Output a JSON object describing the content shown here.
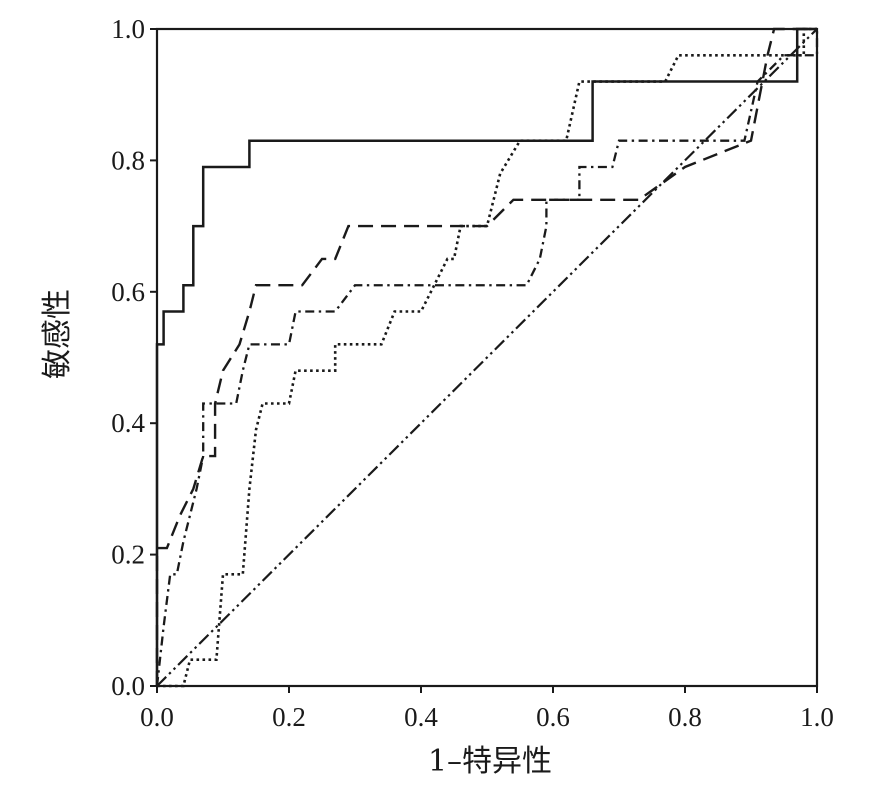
{
  "chart_data": {
    "type": "line",
    "title": "",
    "xlabel": "1–特异性",
    "ylabel": "敏感性",
    "xlim": [
      0,
      1
    ],
    "ylim": [
      0,
      1
    ],
    "xticks": [
      0,
      0.2,
      0.4,
      0.6,
      0.8,
      1.0
    ],
    "xtick_labels": [
      "0.0",
      "0.2",
      "0.4",
      "0.6",
      "0.8",
      "1.0"
    ],
    "yticks": [
      0,
      0.2,
      0.4,
      0.6,
      0.8,
      1.0
    ],
    "ytick_labels": [
      "0.0",
      "0.2",
      "0.4",
      "0.6",
      "0.8",
      "1.0"
    ],
    "grid": false,
    "legend": "none",
    "line_color": "#1a1a1a",
    "series": [
      {
        "style": "solid",
        "points": [
          [
            0,
            0
          ],
          [
            0,
            0.52
          ],
          [
            0.01,
            0.52
          ],
          [
            0.01,
            0.57
          ],
          [
            0.04,
            0.57
          ],
          [
            0.04,
            0.61
          ],
          [
            0.055,
            0.61
          ],
          [
            0.055,
            0.7
          ],
          [
            0.07,
            0.7
          ],
          [
            0.07,
            0.79
          ],
          [
            0.14,
            0.79
          ],
          [
            0.14,
            0.83
          ],
          [
            0.66,
            0.83
          ],
          [
            0.66,
            0.92
          ],
          [
            0.97,
            0.92
          ],
          [
            0.97,
            1
          ],
          [
            1,
            1
          ]
        ]
      },
      {
        "style": "dashed",
        "points": [
          [
            0,
            0
          ],
          [
            0,
            0.21
          ],
          [
            0.015,
            0.21
          ],
          [
            0.035,
            0.26
          ],
          [
            0.055,
            0.3
          ],
          [
            0.07,
            0.35
          ],
          [
            0.088,
            0.35
          ],
          [
            0.088,
            0.43
          ],
          [
            0.1,
            0.48
          ],
          [
            0.125,
            0.52
          ],
          [
            0.14,
            0.57
          ],
          [
            0.15,
            0.61
          ],
          [
            0.22,
            0.61
          ],
          [
            0.25,
            0.65
          ],
          [
            0.27,
            0.65
          ],
          [
            0.29,
            0.7
          ],
          [
            0.5,
            0.7
          ],
          [
            0.54,
            0.74
          ],
          [
            0.73,
            0.74
          ],
          [
            0.8,
            0.79
          ],
          [
            0.9,
            0.83
          ],
          [
            0.925,
            0.96
          ],
          [
            0.935,
            1
          ],
          [
            1,
            1
          ]
        ]
      },
      {
        "style": "dash-dot",
        "points": [
          [
            0,
            0
          ],
          [
            0.01,
            0.09
          ],
          [
            0.02,
            0.17
          ],
          [
            0.03,
            0.17
          ],
          [
            0.04,
            0.22
          ],
          [
            0.05,
            0.26
          ],
          [
            0.06,
            0.3
          ],
          [
            0.07,
            0.35
          ],
          [
            0.07,
            0.43
          ],
          [
            0.12,
            0.43
          ],
          [
            0.13,
            0.48
          ],
          [
            0.14,
            0.52
          ],
          [
            0.2,
            0.52
          ],
          [
            0.21,
            0.57
          ],
          [
            0.27,
            0.57
          ],
          [
            0.3,
            0.61
          ],
          [
            0.56,
            0.61
          ],
          [
            0.58,
            0.65
          ],
          [
            0.59,
            0.7
          ],
          [
            0.59,
            0.74
          ],
          [
            0.64,
            0.74
          ],
          [
            0.64,
            0.79
          ],
          [
            0.69,
            0.79
          ],
          [
            0.7,
            0.83
          ],
          [
            0.89,
            0.83
          ],
          [
            0.91,
            0.92
          ],
          [
            0.95,
            0.96
          ],
          [
            1,
            0.96
          ],
          [
            1,
            1
          ]
        ]
      },
      {
        "style": "dotted",
        "points": [
          [
            0,
            0
          ],
          [
            0.04,
            0
          ],
          [
            0.05,
            0.04
          ],
          [
            0.09,
            0.04
          ],
          [
            0.1,
            0.17
          ],
          [
            0.13,
            0.17
          ],
          [
            0.14,
            0.3
          ],
          [
            0.15,
            0.39
          ],
          [
            0.16,
            0.43
          ],
          [
            0.2,
            0.43
          ],
          [
            0.21,
            0.48
          ],
          [
            0.27,
            0.48
          ],
          [
            0.27,
            0.52
          ],
          [
            0.34,
            0.52
          ],
          [
            0.36,
            0.57
          ],
          [
            0.4,
            0.57
          ],
          [
            0.42,
            0.61
          ],
          [
            0.44,
            0.65
          ],
          [
            0.45,
            0.65
          ],
          [
            0.46,
            0.7
          ],
          [
            0.5,
            0.7
          ],
          [
            0.52,
            0.78
          ],
          [
            0.55,
            0.83
          ],
          [
            0.62,
            0.83
          ],
          [
            0.64,
            0.92
          ],
          [
            0.77,
            0.92
          ],
          [
            0.79,
            0.96
          ],
          [
            0.98,
            0.96
          ],
          [
            0.98,
            1
          ],
          [
            1,
            1
          ]
        ]
      },
      {
        "style": "dash-dot-dot",
        "points": [
          [
            0,
            0
          ],
          [
            1,
            1
          ]
        ]
      }
    ]
  }
}
